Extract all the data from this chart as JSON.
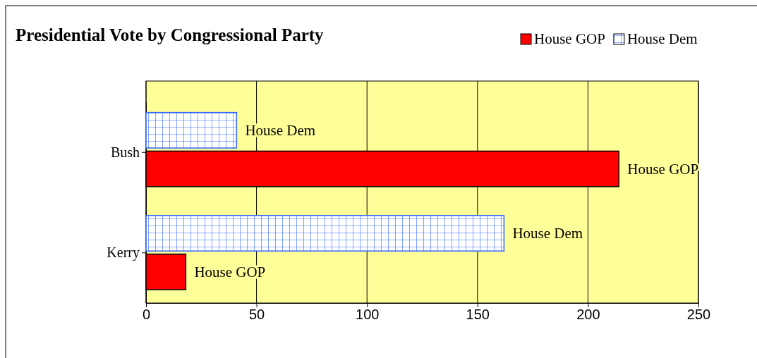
{
  "chart_data": {
    "type": "bar",
    "orientation": "horizontal",
    "title": "Presidential Vote by Congressional Party",
    "categories": [
      "Bush",
      "Kerry"
    ],
    "series": [
      {
        "name": "House GOP",
        "color": "#ff0000",
        "values": [
          214,
          18
        ]
      },
      {
        "name": "House Dem",
        "color": "#3366ff",
        "values": [
          41,
          162
        ]
      }
    ],
    "xlim": [
      0,
      250
    ],
    "xticks": [
      0,
      50,
      100,
      150,
      200,
      250
    ],
    "grid": "x",
    "legend": "top right"
  }
}
